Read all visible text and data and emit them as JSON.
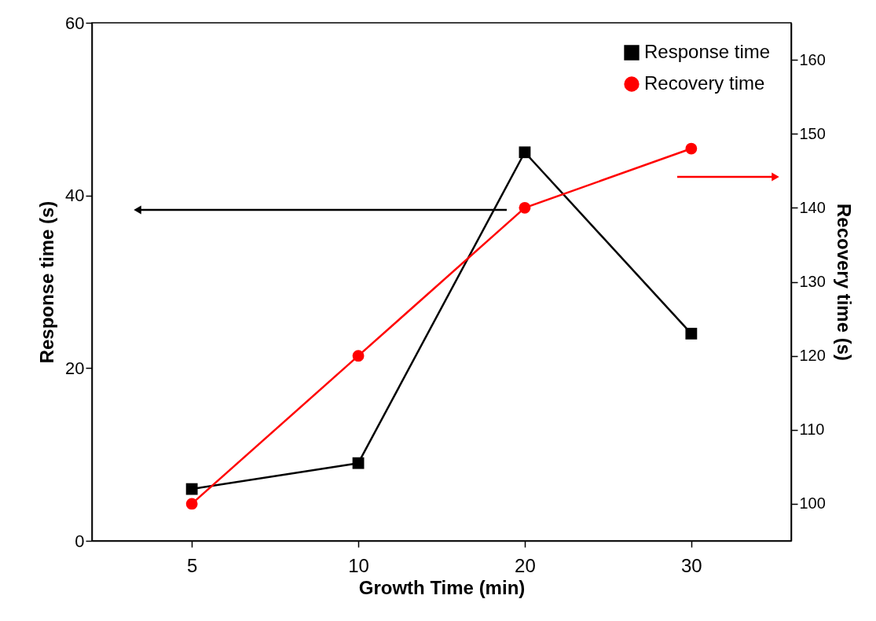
{
  "chart_data": {
    "type": "line",
    "xlabel": "Growth Time (min)",
    "ylabel": "Response time (s)",
    "y2label": "Recovery time (s)",
    "categories": [
      "5",
      "10",
      "20",
      "30"
    ],
    "ylim": [
      0,
      60
    ],
    "yticks": [
      0,
      20,
      40,
      60
    ],
    "y2lim": [
      95,
      165
    ],
    "y2ticks": [
      100,
      110,
      120,
      130,
      140,
      150,
      160
    ],
    "grid": false,
    "legend": "top right",
    "line_style": "solid",
    "series": [
      {
        "name": "Response time",
        "color": "#000000",
        "marker": "square",
        "values": [
          6,
          9,
          45,
          24
        ]
      },
      {
        "name": "Recovery time",
        "color": "#ff0000",
        "marker": "circle",
        "axis": "y2",
        "values": [
          100,
          120,
          140,
          148
        ]
      }
    ]
  }
}
